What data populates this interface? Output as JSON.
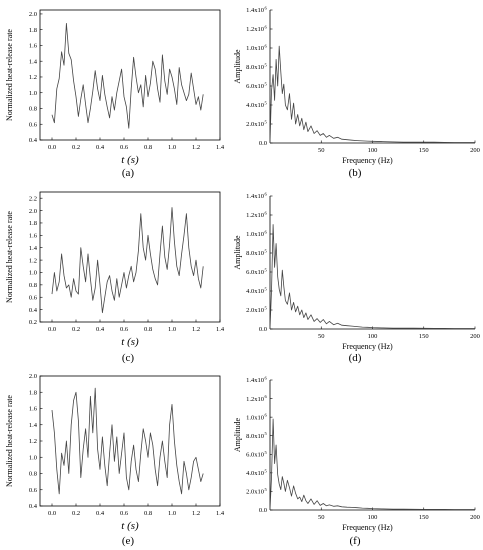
{
  "figure": {
    "panels": [
      {
        "id": "a",
        "label": "(a)"
      },
      {
        "id": "b",
        "label": "(b)"
      },
      {
        "id": "c",
        "label": "(c)"
      },
      {
        "id": "d",
        "label": "(d)"
      },
      {
        "id": "e",
        "label": "(e)"
      },
      {
        "id": "f",
        "label": "(f)"
      }
    ]
  },
  "chart_data": [
    {
      "panel": "a",
      "type": "line",
      "xlabel": "t (s)",
      "ylabel": "Normalized heat-release rate",
      "xlim": [
        -0.1,
        1.4
      ],
      "ylim": [
        0.4,
        2.05
      ],
      "xticks": [
        0.0,
        0.2,
        0.4,
        0.6,
        0.8,
        1.0,
        1.2,
        1.4
      ],
      "xtick_labels": [
        "0.0",
        "0.2",
        "0.4",
        "0.6",
        "0.8",
        "1.0",
        "1.2",
        "1.4"
      ],
      "yticks": [
        0.4,
        0.6,
        0.8,
        1.0,
        1.2,
        1.4,
        1.6,
        1.8,
        2.0
      ],
      "ytick_labels": [
        "0.4",
        "0.6",
        "0.8",
        "1.0",
        "1.2",
        "1.4",
        "1.6",
        "1.8",
        "2.0"
      ],
      "x": [
        0.0,
        0.02,
        0.04,
        0.06,
        0.08,
        0.1,
        0.12,
        0.14,
        0.16,
        0.18,
        0.2,
        0.22,
        0.24,
        0.26,
        0.28,
        0.3,
        0.32,
        0.34,
        0.36,
        0.38,
        0.4,
        0.42,
        0.44,
        0.46,
        0.48,
        0.5,
        0.52,
        0.54,
        0.56,
        0.58,
        0.6,
        0.62,
        0.64,
        0.66,
        0.68,
        0.7,
        0.72,
        0.74,
        0.76,
        0.78,
        0.8,
        0.82,
        0.84,
        0.86,
        0.88,
        0.9,
        0.92,
        0.94,
        0.96,
        0.98,
        1.0,
        1.02,
        1.04,
        1.06,
        1.08,
        1.1,
        1.12,
        1.14,
        1.16,
        1.18,
        1.2,
        1.22,
        1.24,
        1.26
      ],
      "y": [
        0.72,
        0.62,
        1.05,
        1.18,
        1.52,
        1.35,
        1.88,
        1.5,
        1.42,
        1.15,
        0.95,
        0.7,
        0.92,
        1.1,
        0.85,
        0.62,
        0.8,
        1.02,
        1.28,
        1.05,
        0.9,
        1.22,
        0.98,
        0.82,
        0.68,
        0.95,
        0.78,
        1.0,
        1.15,
        1.3,
        0.95,
        0.82,
        0.55,
        1.05,
        1.45,
        1.2,
        1.0,
        1.1,
        0.82,
        1.22,
        0.95,
        1.12,
        1.4,
        1.3,
        1.05,
        0.88,
        1.48,
        1.15,
        0.98,
        1.3,
        1.2,
        1.05,
        0.85,
        1.32,
        1.1,
        1.0,
        0.9,
        0.98,
        1.25,
        1.05,
        0.85,
        0.95,
        0.78,
        0.98
      ]
    },
    {
      "panel": "b",
      "type": "line",
      "xlabel": "Frequency (Hz)",
      "ylabel": "Amplitude",
      "xlim": [
        0,
        200
      ],
      "ylim": [
        0,
        14
      ],
      "xticks": [
        50,
        100,
        150,
        200
      ],
      "xtick_labels": [
        "50",
        "100",
        "150",
        "200"
      ],
      "yticks": [
        0,
        2,
        4,
        6,
        8,
        10,
        12,
        14
      ],
      "ytick_labels": [
        "0.0",
        "2.0x10",
        "4.0x10",
        "6.0x10",
        "8.0x10",
        "1.0x10",
        "1.2x10",
        "1.4x10"
      ],
      "ytick_exps": [
        "",
        "5",
        "5",
        "5",
        "5",
        "6",
        "6",
        "6"
      ],
      "x": [
        0,
        1.5,
        3,
        4.5,
        6,
        7.5,
        9,
        10.5,
        12,
        13.5,
        15,
        17,
        19,
        21,
        23,
        25,
        27,
        29,
        31,
        33,
        35,
        37,
        40,
        43,
        46,
        49,
        52,
        55,
        58,
        62,
        66,
        70,
        75,
        80,
        85,
        90,
        95,
        100,
        110,
        120,
        130,
        140,
        150,
        160,
        170,
        180,
        190,
        200
      ],
      "y": [
        0,
        5.5,
        7.2,
        4.5,
        8.8,
        6.0,
        10.2,
        7.5,
        5.2,
        6.2,
        4.0,
        3.5,
        5.2,
        2.5,
        4.2,
        2.0,
        3.0,
        1.8,
        2.6,
        1.4,
        2.2,
        1.2,
        1.8,
        1.0,
        1.3,
        0.8,
        1.0,
        0.6,
        0.8,
        0.5,
        0.6,
        0.4,
        0.35,
        0.3,
        0.25,
        0.22,
        0.2,
        0.18,
        0.15,
        0.12,
        0.1,
        0.1,
        0.08,
        0.08,
        0.06,
        0.05,
        0.05,
        0.05
      ]
    },
    {
      "panel": "c",
      "type": "line",
      "xlabel": "t (s)",
      "ylabel": "Normalized heat-release rate",
      "xlim": [
        -0.1,
        1.4
      ],
      "ylim": [
        0.2,
        2.3
      ],
      "xticks": [
        0.0,
        0.2,
        0.4,
        0.6,
        0.8,
        1.0,
        1.2,
        1.4
      ],
      "xtick_labels": [
        "0.0",
        "0.2",
        "0.4",
        "0.6",
        "0.8",
        "1.0",
        "1.2",
        "1.4"
      ],
      "yticks": [
        0.2,
        0.4,
        0.6,
        0.8,
        1.0,
        1.2,
        1.4,
        1.6,
        1.8,
        2.0,
        2.2
      ],
      "ytick_labels": [
        "0.2",
        "0.4",
        "0.6",
        "0.8",
        "1.0",
        "1.2",
        "1.4",
        "1.6",
        "1.8",
        "2.0",
        "2.2"
      ],
      "x": [
        0.0,
        0.02,
        0.04,
        0.06,
        0.08,
        0.1,
        0.12,
        0.14,
        0.16,
        0.18,
        0.2,
        0.22,
        0.24,
        0.26,
        0.28,
        0.3,
        0.32,
        0.34,
        0.36,
        0.38,
        0.4,
        0.42,
        0.44,
        0.46,
        0.48,
        0.5,
        0.52,
        0.54,
        0.56,
        0.58,
        0.6,
        0.62,
        0.64,
        0.66,
        0.68,
        0.7,
        0.72,
        0.74,
        0.76,
        0.78,
        0.8,
        0.82,
        0.84,
        0.86,
        0.88,
        0.9,
        0.92,
        0.94,
        0.96,
        0.98,
        1.0,
        1.02,
        1.04,
        1.06,
        1.08,
        1.1,
        1.12,
        1.14,
        1.16,
        1.18,
        1.2,
        1.22,
        1.24,
        1.26
      ],
      "y": [
        0.65,
        1.0,
        0.7,
        0.85,
        1.3,
        0.95,
        0.75,
        0.8,
        0.6,
        0.9,
        0.7,
        0.65,
        1.4,
        1.1,
        0.85,
        1.3,
        0.9,
        0.55,
        0.75,
        1.2,
        0.8,
        0.35,
        0.6,
        0.85,
        0.95,
        0.7,
        0.55,
        0.9,
        0.6,
        0.8,
        1.0,
        0.75,
        0.95,
        1.1,
        0.85,
        1.0,
        1.35,
        1.95,
        1.4,
        1.2,
        1.6,
        1.3,
        1.05,
        0.9,
        0.8,
        1.3,
        1.75,
        1.25,
        1.05,
        1.45,
        2.05,
        1.5,
        1.1,
        0.95,
        1.3,
        1.6,
        1.95,
        1.4,
        1.1,
        0.95,
        1.2,
        0.9,
        0.75,
        1.1
      ]
    },
    {
      "panel": "d",
      "type": "line",
      "xlabel": "Frequency (Hz)",
      "ylabel": "Amplitude",
      "xlim": [
        0,
        200
      ],
      "ylim": [
        0,
        14
      ],
      "xticks": [
        50,
        100,
        150,
        200
      ],
      "xtick_labels": [
        "50",
        "100",
        "150",
        "200"
      ],
      "yticks": [
        0,
        2,
        4,
        6,
        8,
        10,
        12,
        14
      ],
      "ytick_labels": [
        "0.0",
        "2.0x10",
        "4.0x10",
        "6.0x10",
        "8.0x10",
        "1.0x10",
        "1.2x10",
        "1.4x10"
      ],
      "ytick_exps": [
        "",
        "5",
        "5",
        "5",
        "5",
        "6",
        "6",
        "6"
      ],
      "x": [
        0,
        1.5,
        3,
        4.5,
        6,
        7.5,
        9,
        10.5,
        12,
        13.5,
        15,
        17,
        19,
        21,
        23,
        25,
        27,
        29,
        31,
        33,
        35,
        37,
        40,
        43,
        46,
        49,
        52,
        55,
        58,
        62,
        66,
        70,
        75,
        80,
        85,
        90,
        95,
        100,
        110,
        120,
        130,
        140,
        150,
        160,
        170,
        180,
        190,
        200
      ],
      "y": [
        0,
        4.0,
        11.0,
        6.5,
        9.0,
        5.5,
        4.2,
        3.5,
        6.2,
        4.5,
        3.0,
        2.6,
        3.8,
        2.0,
        2.8,
        1.8,
        2.4,
        1.5,
        2.0,
        1.2,
        1.7,
        1.0,
        1.5,
        0.8,
        1.1,
        0.7,
        1.0,
        0.55,
        0.8,
        0.45,
        0.6,
        0.4,
        0.35,
        0.3,
        0.25,
        0.2,
        0.18,
        0.15,
        0.12,
        0.1,
        0.1,
        0.08,
        0.07,
        0.06,
        0.06,
        0.05,
        0.05,
        0.05
      ]
    },
    {
      "panel": "e",
      "type": "line",
      "xlabel": "t (s)",
      "ylabel": "Normalized heat-release rate",
      "xlim": [
        -0.1,
        1.4
      ],
      "ylim": [
        0.4,
        2.0
      ],
      "xticks": [
        0.0,
        0.2,
        0.4,
        0.6,
        0.8,
        1.0,
        1.2,
        1.4
      ],
      "xtick_labels": [
        "0.0",
        "0.2",
        "0.4",
        "0.6",
        "0.8",
        "1.0",
        "1.2",
        "1.4"
      ],
      "yticks": [
        0.4,
        0.6,
        0.8,
        1.0,
        1.2,
        1.4,
        1.6,
        1.8,
        2.0
      ],
      "ytick_labels": [
        "0.4",
        "0.6",
        "0.8",
        "1.0",
        "1.2",
        "1.4",
        "1.6",
        "1.8",
        "2.0"
      ],
      "x": [
        0.0,
        0.02,
        0.04,
        0.06,
        0.08,
        0.1,
        0.12,
        0.14,
        0.16,
        0.18,
        0.2,
        0.22,
        0.24,
        0.26,
        0.28,
        0.3,
        0.32,
        0.34,
        0.36,
        0.38,
        0.4,
        0.42,
        0.44,
        0.46,
        0.48,
        0.5,
        0.52,
        0.54,
        0.56,
        0.58,
        0.6,
        0.62,
        0.64,
        0.66,
        0.68,
        0.7,
        0.72,
        0.74,
        0.76,
        0.78,
        0.8,
        0.82,
        0.84,
        0.86,
        0.88,
        0.9,
        0.92,
        0.94,
        0.96,
        0.98,
        1.0,
        1.02,
        1.04,
        1.06,
        1.08,
        1.1,
        1.12,
        1.14,
        1.16,
        1.18,
        1.2,
        1.22,
        1.24,
        1.26
      ],
      "y": [
        1.58,
        1.3,
        0.85,
        0.55,
        1.05,
        0.9,
        1.2,
        0.8,
        1.4,
        1.7,
        1.8,
        1.45,
        0.75,
        1.1,
        1.35,
        1.0,
        1.75,
        1.3,
        1.85,
        1.1,
        0.85,
        1.25,
        0.9,
        0.65,
        1.05,
        1.4,
        0.95,
        1.25,
        0.8,
        1.05,
        1.3,
        0.75,
        0.6,
        0.95,
        1.15,
        0.85,
        0.7,
        1.05,
        1.35,
        1.2,
        1.0,
        1.3,
        1.15,
        0.85,
        0.65,
        1.0,
        1.2,
        0.95,
        0.75,
        1.4,
        1.65,
        1.2,
        0.9,
        0.7,
        0.55,
        0.95,
        0.8,
        0.6,
        0.75,
        0.95,
        1.0,
        0.85,
        0.7,
        0.8
      ]
    },
    {
      "panel": "f",
      "type": "line",
      "xlabel": "Frequency (Hz)",
      "ylabel": "Amplitude",
      "xlim": [
        0,
        200
      ],
      "ylim": [
        0,
        14
      ],
      "xticks": [
        50,
        100,
        150,
        200
      ],
      "xtick_labels": [
        "50",
        "100",
        "150",
        "200"
      ],
      "yticks": [
        0,
        2,
        4,
        6,
        8,
        10,
        12,
        14
      ],
      "ytick_labels": [
        "0.0",
        "2.0x10",
        "4.0x10",
        "6.0x10",
        "8.0x10",
        "1.0x10",
        "1.2x10",
        "1.4x10"
      ],
      "ytick_exps": [
        "",
        "5",
        "5",
        "5",
        "5",
        "6",
        "6",
        "6"
      ],
      "x": [
        0,
        1.5,
        3,
        4.5,
        6,
        7.5,
        9,
        10.5,
        12,
        13.5,
        15,
        17,
        19,
        21,
        23,
        25,
        27,
        29,
        31,
        33,
        35,
        37,
        40,
        43,
        46,
        49,
        52,
        55,
        58,
        62,
        66,
        70,
        75,
        80,
        85,
        90,
        95,
        100,
        110,
        120,
        130,
        140,
        150,
        160,
        170,
        180,
        190,
        200
      ],
      "y": [
        0,
        3.5,
        9.8,
        5.0,
        7.0,
        3.8,
        2.8,
        2.2,
        3.6,
        2.9,
        2.0,
        3.2,
        2.4,
        1.5,
        2.6,
        1.8,
        1.2,
        1.4,
        0.9,
        1.6,
        1.0,
        0.7,
        1.2,
        0.6,
        1.0,
        0.5,
        0.7,
        0.45,
        0.55,
        0.4,
        0.45,
        0.35,
        0.3,
        0.28,
        0.25,
        0.2,
        0.18,
        0.15,
        0.12,
        0.1,
        0.1,
        0.08,
        0.07,
        0.06,
        0.06,
        0.05,
        0.05,
        0.05
      ]
    }
  ]
}
